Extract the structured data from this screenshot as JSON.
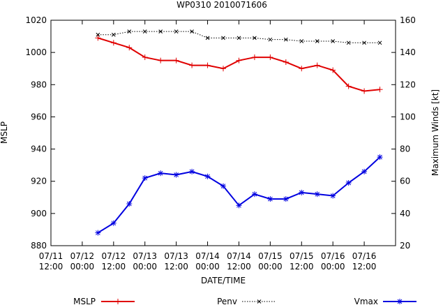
{
  "chart_data": {
    "type": "line",
    "title": "WP0310 2010071606",
    "xlabel": "DATE/TIME",
    "ylabel": "MSLP",
    "y2label": "Maximum Winds [kt]",
    "x": [
      0.75,
      1.0,
      1.25,
      1.5,
      1.75,
      2.0,
      2.25,
      2.5,
      2.75,
      3.0,
      3.25,
      3.5,
      3.75,
      4.0,
      4.25,
      4.5,
      4.75,
      5.0,
      5.25
    ],
    "xlim": [
      0,
      5.5
    ],
    "x_ticks": [
      {
        "value": 0,
        "line1": "07/11",
        "line2": "12:00"
      },
      {
        "value": 0.5,
        "line1": "07/12",
        "line2": "00:00"
      },
      {
        "value": 1.0,
        "line1": "07/12",
        "line2": "12:00"
      },
      {
        "value": 1.5,
        "line1": "07/13",
        "line2": "00:00"
      },
      {
        "value": 2.0,
        "line1": "07/13",
        "line2": "12:00"
      },
      {
        "value": 2.5,
        "line1": "07/14",
        "line2": "00:00"
      },
      {
        "value": 3.0,
        "line1": "07/14",
        "line2": "12:00"
      },
      {
        "value": 3.5,
        "line1": "07/15",
        "line2": "00:00"
      },
      {
        "value": 4.0,
        "line1": "07/15",
        "line2": "12:00"
      },
      {
        "value": 4.5,
        "line1": "07/16",
        "line2": "00:00"
      },
      {
        "value": 5.0,
        "line1": "07/16",
        "line2": "12:00"
      }
    ],
    "ylim": [
      880,
      1020
    ],
    "y_ticks": [
      880,
      900,
      920,
      940,
      960,
      980,
      1000,
      1020
    ],
    "y2lim": [
      20,
      160
    ],
    "y2_ticks": [
      20,
      40,
      60,
      80,
      100,
      120,
      140,
      160
    ],
    "grid": false,
    "legend_position": "bottom",
    "series": [
      {
        "name": "MSLP",
        "axis": "left",
        "color": "#e00000",
        "marker": "plus",
        "dash": "solid",
        "values": [
          1009,
          1006,
          1003,
          997,
          995,
          995,
          992,
          992,
          990,
          995,
          997,
          997,
          994,
          990,
          992,
          989,
          979,
          976,
          977
        ]
      },
      {
        "name": "Penv",
        "axis": "left",
        "color": "#000000",
        "marker": "x",
        "dash": "dotted",
        "values": [
          1011,
          1011,
          1013,
          1013,
          1013,
          1013,
          1013,
          1009,
          1009,
          1009,
          1009,
          1008,
          1008,
          1007,
          1007,
          1007,
          1006,
          1006,
          1006
        ]
      },
      {
        "name": "Vmax",
        "axis": "right",
        "color": "#0000e0",
        "marker": "star",
        "dash": "solid",
        "values": [
          28,
          34,
          46,
          62,
          65,
          64,
          66,
          63,
          57,
          45,
          52,
          49,
          49,
          53,
          52,
          51,
          59,
          66,
          75
        ]
      }
    ]
  }
}
